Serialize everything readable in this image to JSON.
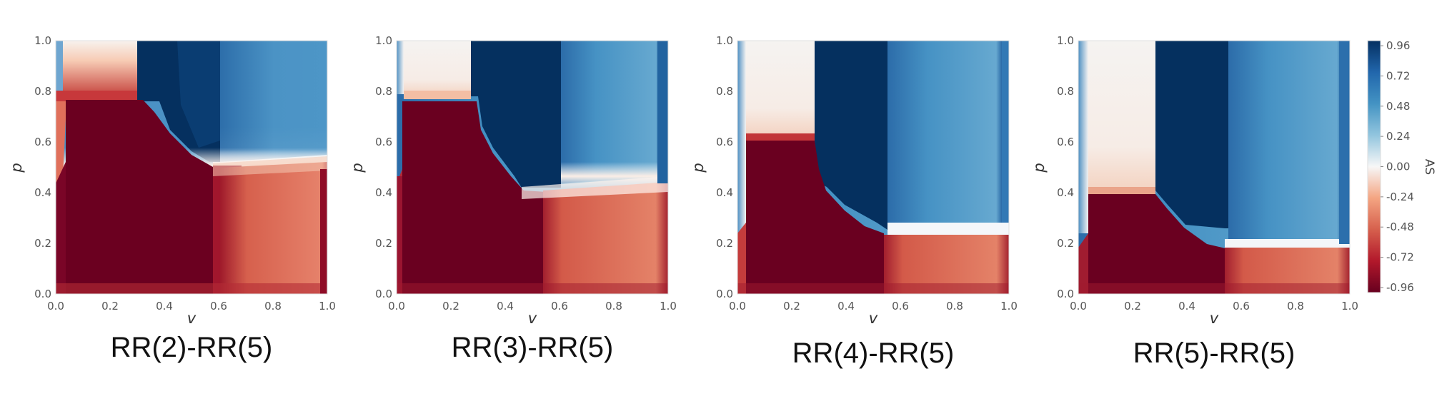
{
  "chart_data": [
    {
      "type": "heatmap",
      "title": "RR(2)-RR(5)",
      "xlabel": "v",
      "ylabel": "p",
      "xlim": [
        0,
        1
      ],
      "ylim": [
        0,
        1
      ],
      "x_ticks": [
        "0.0",
        "0.2",
        "0.4",
        "0.6",
        "0.8",
        "1.0"
      ],
      "y_ticks": [
        "0.0",
        "0.2",
        "0.4",
        "0.6",
        "0.8",
        "1.0"
      ],
      "grid": false,
      "regions": [
        {
          "v": [
            0.0,
            0.3
          ],
          "p": [
            0.85,
            1.0
          ],
          "AS": -0.05
        },
        {
          "v": [
            0.0,
            0.3
          ],
          "p": [
            0.75,
            0.85
          ],
          "AS": -0.7
        },
        {
          "v": [
            0.0,
            0.55
          ],
          "p": [
            0.0,
            0.75
          ],
          "AS": -0.96
        },
        {
          "v": [
            0.3,
            0.55
          ],
          "p": [
            0.55,
            1.0
          ],
          "AS": 0.96
        },
        {
          "v": [
            0.55,
            1.0
          ],
          "p": [
            0.55,
            1.0
          ],
          "AS": 0.5
        },
        {
          "v": [
            0.55,
            1.0
          ],
          "p": [
            0.0,
            0.5
          ],
          "AS": -0.6
        }
      ]
    },
    {
      "type": "heatmap",
      "title": "RR(3)-RR(5)",
      "xlabel": "v",
      "ylabel": "p",
      "xlim": [
        0,
        1
      ],
      "ylim": [
        0,
        1
      ],
      "x_ticks": [
        "0.0",
        "0.2",
        "0.4",
        "0.6",
        "0.8",
        "1.0"
      ],
      "y_ticks": [
        "0.0",
        "0.2",
        "0.4",
        "0.6",
        "0.8",
        "1.0"
      ],
      "grid": false,
      "regions": [
        {
          "v": [
            0.0,
            0.28
          ],
          "p": [
            0.78,
            1.0
          ],
          "AS": -0.05
        },
        {
          "v": [
            0.0,
            0.5
          ],
          "p": [
            0.0,
            0.75
          ],
          "AS": -0.96
        },
        {
          "v": [
            0.3,
            0.55
          ],
          "p": [
            0.4,
            1.0
          ],
          "AS": 0.96
        },
        {
          "v": [
            0.55,
            1.0
          ],
          "p": [
            0.45,
            1.0
          ],
          "AS": 0.5
        },
        {
          "v": [
            0.5,
            1.0
          ],
          "p": [
            0.0,
            0.42
          ],
          "AS": -0.65
        }
      ]
    },
    {
      "type": "heatmap",
      "title": "RR(4)-RR(5)",
      "xlabel": "v",
      "ylabel": "p",
      "xlim": [
        0,
        1
      ],
      "ylim": [
        0,
        1
      ],
      "x_ticks": [
        "0.0",
        "0.2",
        "0.4",
        "0.6",
        "0.8",
        "1.0"
      ],
      "y_ticks": [
        "0.0",
        "0.2",
        "0.4",
        "0.6",
        "0.8",
        "1.0"
      ],
      "grid": false,
      "regions": [
        {
          "v": [
            0.02,
            0.28
          ],
          "p": [
            0.62,
            1.0
          ],
          "AS": -0.05
        },
        {
          "v": [
            0.0,
            0.55
          ],
          "p": [
            0.0,
            0.6
          ],
          "AS": -0.96
        },
        {
          "v": [
            0.3,
            0.55
          ],
          "p": [
            0.25,
            1.0
          ],
          "AS": 0.96
        },
        {
          "v": [
            0.55,
            1.0
          ],
          "p": [
            0.25,
            1.0
          ],
          "AS": 0.5
        },
        {
          "v": [
            0.55,
            1.0
          ],
          "p": [
            0.0,
            0.22
          ],
          "AS": -0.6
        }
      ]
    },
    {
      "type": "heatmap",
      "title": "RR(5)-RR(5)",
      "xlabel": "v",
      "ylabel": "p",
      "xlim": [
        0,
        1
      ],
      "ylim": [
        0,
        1
      ],
      "x_ticks": [
        "0.0",
        "0.2",
        "0.4",
        "0.6",
        "0.8",
        "1.0"
      ],
      "y_ticks": [
        "0.0",
        "0.2",
        "0.4",
        "0.6",
        "0.8",
        "1.0"
      ],
      "grid": false,
      "regions": [
        {
          "v": [
            0.04,
            0.28
          ],
          "p": [
            0.42,
            1.0
          ],
          "AS": -0.05
        },
        {
          "v": [
            0.0,
            0.55
          ],
          "p": [
            0.0,
            0.4
          ],
          "AS": -0.96
        },
        {
          "v": [
            0.3,
            0.55
          ],
          "p": [
            0.25,
            1.0
          ],
          "AS": 0.96
        },
        {
          "v": [
            0.55,
            1.0
          ],
          "p": [
            0.2,
            1.0
          ],
          "AS": 0.45
        },
        {
          "v": [
            0.55,
            1.0
          ],
          "p": [
            0.0,
            0.18
          ],
          "AS": -0.6
        }
      ]
    }
  ],
  "colorbar": {
    "label": "AS",
    "range": [
      -1.0,
      1.0
    ],
    "ticks": [
      "-0.96",
      "-0.72",
      "-0.48",
      "-0.24",
      "0.00",
      "0.24",
      "0.48",
      "0.72",
      "0.96"
    ],
    "tick_values": [
      -0.96,
      -0.72,
      -0.48,
      -0.24,
      0.0,
      0.24,
      0.48,
      0.72,
      0.96
    ],
    "colormap": "RdBu",
    "colors": {
      "neg": "#67001f",
      "mid": "#f7f7f7",
      "pos": "#053061"
    }
  }
}
